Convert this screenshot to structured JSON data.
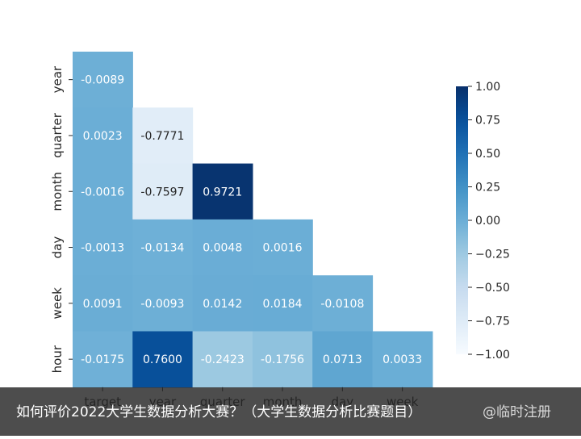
{
  "chart_data": {
    "type": "heatmap",
    "title": "",
    "xlabel": "",
    "ylabel": "",
    "x_categories": [
      "target",
      "year",
      "quarter",
      "month",
      "day",
      "week"
    ],
    "y_categories": [
      "year",
      "quarter",
      "month",
      "day",
      "week",
      "hour"
    ],
    "matrix": [
      [
        "-0.0089",
        null,
        null,
        null,
        null,
        null
      ],
      [
        "0.0023",
        "-0.7771",
        null,
        null,
        null,
        null
      ],
      [
        "-0.0016",
        "-0.7597",
        "0.9721",
        null,
        null,
        null
      ],
      [
        "-0.0013",
        "-0.0134",
        "0.0048",
        "0.0016",
        null,
        null
      ],
      [
        "0.0091",
        "-0.0093",
        "0.0142",
        "0.0184",
        "-0.0108",
        null
      ],
      [
        "-0.0175",
        "0.7600",
        "-0.2423",
        "-0.1756",
        "0.0713",
        "0.0033"
      ]
    ],
    "colormap": "Blues",
    "vmin": -1.0,
    "vmax": 1.0,
    "colorbar_ticks": [
      "1.00",
      "0.75",
      "0.50",
      "0.25",
      "0.00",
      "−0.25",
      "−0.50",
      "−0.75",
      "−1.00"
    ],
    "colorbar_tick_values": [
      1.0,
      0.75,
      0.5,
      0.25,
      0.0,
      -0.25,
      -0.5,
      -0.75,
      -1.0
    ],
    "grid": false,
    "legend": "colorbar-right"
  },
  "overlay": {
    "title": "如何评价2022大学生数据分析大赛？（大学生数据分析比赛题目）",
    "watermark": "@临时注册"
  }
}
